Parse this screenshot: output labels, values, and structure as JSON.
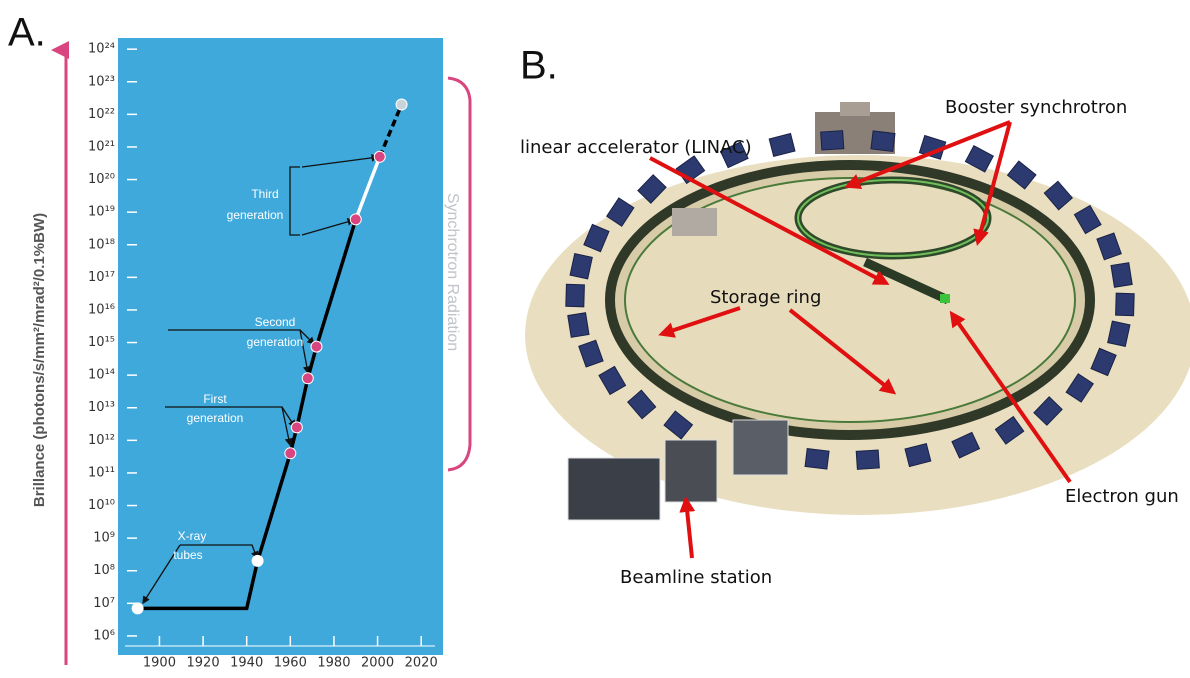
{
  "panel_labels": [
    "A.",
    "B."
  ],
  "chart_data": {
    "type": "line",
    "y_label": "Brillance (photons/s/mm²/mrad²/0.1%BW)",
    "side_label": "Synchrotron Radiation",
    "background": "#3fa9dc",
    "yscale": "log",
    "xlim": [
      1881,
      2030
    ],
    "ylim": [
      260000,
      2.2e+24
    ],
    "xticks": [
      1900,
      1920,
      1940,
      1960,
      1980,
      2000,
      2020
    ],
    "yticks": [
      {
        "value": 1000000.0,
        "label": "10⁶"
      },
      {
        "value": 10000000.0,
        "label": "10⁷"
      },
      {
        "value": 100000000.0,
        "label": "10⁸"
      },
      {
        "value": 1000000000.0,
        "label": "10⁹"
      },
      {
        "value": 10000000000.0,
        "label": "10¹⁰"
      },
      {
        "value": 100000000000.0,
        "label": "10¹¹"
      },
      {
        "value": 1000000000000.0,
        "label": "10¹²"
      },
      {
        "value": 10000000000000.0,
        "label": "10¹³"
      },
      {
        "value": 100000000000000.0,
        "label": "10¹⁴"
      },
      {
        "value": 1000000000000000.0,
        "label": "10¹⁵"
      },
      {
        "value": 1e+16,
        "label": "10¹⁶"
      },
      {
        "value": 1e+17,
        "label": "10¹⁷"
      },
      {
        "value": 1e+18,
        "label": "10¹⁸"
      },
      {
        "value": 1e+19,
        "label": "10¹⁹"
      },
      {
        "value": 1e+20,
        "label": "10²⁰"
      },
      {
        "value": 1e+21,
        "label": "10²¹"
      },
      {
        "value": 1e+22,
        "label": "10²²"
      },
      {
        "value": 1e+23,
        "label": "10²³"
      },
      {
        "value": 1e+24,
        "label": "10²⁴"
      }
    ],
    "series": [
      {
        "color": "#000000",
        "x": [
          1890,
          1940,
          1945,
          1960,
          1963,
          1968,
          1972,
          1990
        ],
        "values": [
          7000000.0,
          7000000.0,
          200000000.0,
          400000000000.0,
          2500000000000.0,
          80000000000000.0,
          750000000000000.0,
          6e+18
        ]
      },
      {
        "color": "#ffffff",
        "x": [
          1990,
          2001
        ],
        "values": [
          6e+18,
          5e+20
        ]
      },
      {
        "color": "#000000",
        "dashed": true,
        "x": [
          2001,
          2011
        ],
        "values": [
          5e+20,
          2e+22
        ]
      }
    ],
    "points": {
      "x": [
        1890,
        1945,
        1960,
        1963,
        1968,
        1972,
        1990,
        2001,
        2011
      ],
      "values": [
        7000000.0,
        200000000.0,
        400000000000.0,
        2500000000000.0,
        80000000000000.0,
        750000000000000.0,
        6e+18,
        5e+20,
        2e+22
      ],
      "colors": [
        "#ffffff",
        "#ffffff",
        "#d9467f",
        "#d9467f",
        "#d9467f",
        "#d9467f",
        "#d9467f",
        "#d9467f",
        "#c8d4dc"
      ]
    },
    "annotations": [
      {
        "lines": [
          "Third",
          "generation"
        ]
      },
      {
        "lines": [
          "Second",
          "generation"
        ]
      },
      {
        "lines": [
          "First",
          "generation"
        ]
      },
      {
        "lines": [
          "X-ray",
          "tubes"
        ]
      }
    ]
  },
  "diagram": {
    "labels": [
      "Booster synchrotron",
      "linear accelerator (LINAC)",
      "Storage ring",
      "Electron gun",
      "Beamline station"
    ]
  }
}
